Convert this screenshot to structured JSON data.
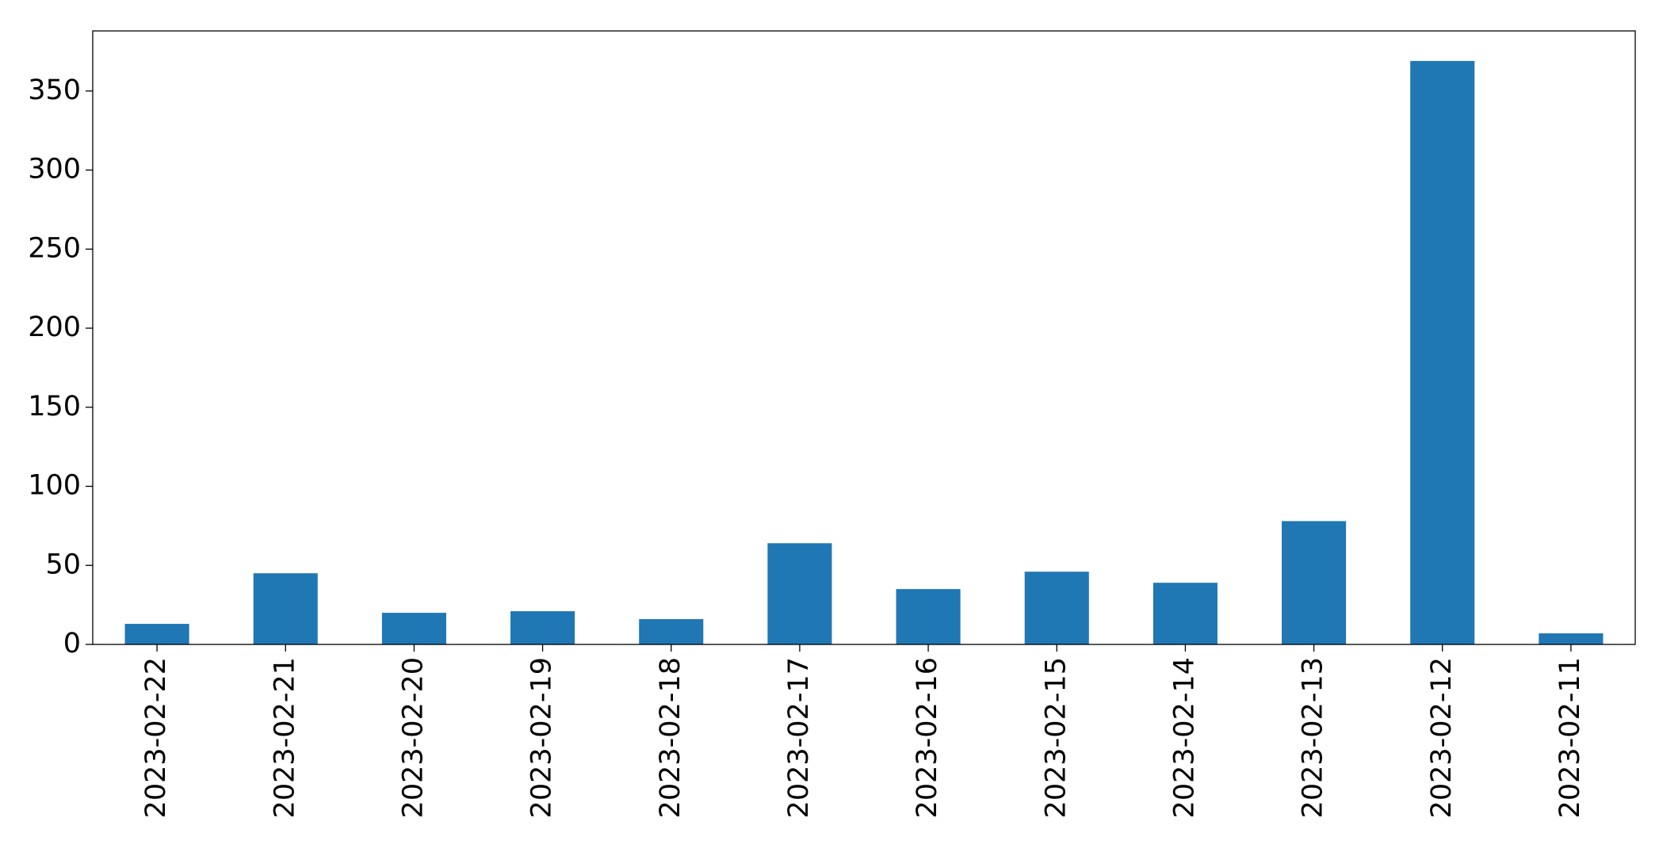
{
  "chart_data": {
    "type": "bar",
    "categories": [
      "2023-02-22",
      "2023-02-21",
      "2023-02-20",
      "2023-02-19",
      "2023-02-18",
      "2023-02-17",
      "2023-02-16",
      "2023-02-15",
      "2023-02-14",
      "2023-02-13",
      "2023-02-12",
      "2023-02-11"
    ],
    "values": [
      13,
      45,
      20,
      21,
      16,
      64,
      35,
      46,
      39,
      78,
      369,
      7
    ],
    "color": "#1f77b4",
    "ylim": [
      0,
      388
    ],
    "yticks": [
      0,
      50,
      100,
      150,
      200,
      250,
      300,
      350
    ],
    "grid": false
  }
}
